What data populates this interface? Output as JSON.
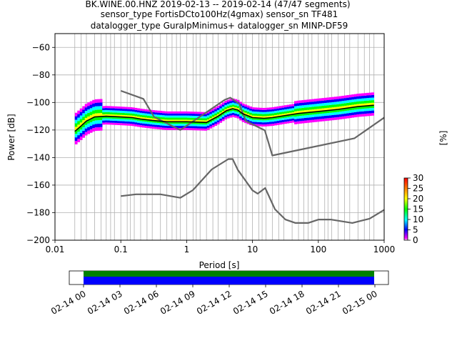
{
  "title": {
    "line1": "BK.WINE.00.HNZ   2019-02-13 -- 2019-02-14  (47/47 segments)",
    "line2": "sensor_type FortisDCto100Hz(4gmax) sensor_sn TF481",
    "line3": "datalogger_type GuralpMinimus+ datalogger_sn MINP-DF59"
  },
  "colors": {
    "model": "#666666",
    "mean": "#000000",
    "grid": "#b0b0b0",
    "timeline_green": "#008000",
    "timeline_blue": "#0000ff"
  },
  "chart_data": {
    "type": "line",
    "xlabel": "Period [s]",
    "ylabel": "Power [dB]",
    "xscale": "log",
    "xlim": [
      0.01,
      1000
    ],
    "ylim": [
      -200,
      -50
    ],
    "grid": true,
    "x_ticks": [
      {
        "value": 0.01,
        "label": "0.01"
      },
      {
        "value": 0.1,
        "label": "0.1"
      },
      {
        "value": 1,
        "label": "1"
      },
      {
        "value": 10,
        "label": "10"
      },
      {
        "value": 100,
        "label": "100"
      },
      {
        "value": 1000,
        "label": "1000"
      }
    ],
    "y_ticks": [
      {
        "value": -60,
        "label": "−60"
      },
      {
        "value": -80,
        "label": "−80"
      },
      {
        "value": -100,
        "label": "−100"
      },
      {
        "value": -120,
        "label": "−120"
      },
      {
        "value": -140,
        "label": "−140"
      },
      {
        "value": -160,
        "label": "−160"
      },
      {
        "value": -180,
        "label": "−180"
      },
      {
        "value": -200,
        "label": "−200"
      }
    ],
    "grid_periods": [
      0.02,
      0.025,
      0.03,
      0.04,
      0.05,
      0.06,
      0.07,
      0.08,
      0.1,
      0.125,
      0.14,
      0.16,
      0.2,
      0.25,
      0.3,
      0.4,
      0.5,
      0.6,
      0.7,
      0.8,
      1,
      1.25,
      1.4,
      1.6,
      2,
      2.5,
      3,
      4,
      5,
      6,
      7,
      8,
      10,
      12.5,
      14,
      16,
      20,
      25,
      30,
      40,
      50,
      60,
      70,
      80,
      100,
      125,
      140,
      160,
      200,
      250,
      300,
      400,
      500,
      600,
      700
    ],
    "series": [
      {
        "role": "high-noise-model",
        "points": [
          [
            0.1,
            -91.5
          ],
          [
            0.22,
            -97.4
          ],
          [
            0.32,
            -110.5
          ],
          [
            0.8,
            -120
          ],
          [
            3.8,
            -98
          ],
          [
            4.6,
            -96.5
          ],
          [
            6.3,
            -101
          ],
          [
            7.9,
            -113.5
          ],
          [
            15.4,
            -120.3
          ],
          [
            20,
            -138.5
          ],
          [
            354.8,
            -126
          ],
          [
            1000,
            -111
          ]
        ]
      },
      {
        "role": "low-noise-model",
        "points": [
          [
            0.1,
            -168
          ],
          [
            0.17,
            -166.7
          ],
          [
            0.4,
            -166.7
          ],
          [
            0.8,
            -169.2
          ],
          [
            1.24,
            -163.7
          ],
          [
            2.4,
            -148.6
          ],
          [
            4.3,
            -141.1
          ],
          [
            5,
            -141.1
          ],
          [
            6,
            -149
          ],
          [
            10,
            -163.8
          ],
          [
            12,
            -166.2
          ],
          [
            15.6,
            -162.1
          ],
          [
            21.9,
            -177.5
          ],
          [
            31.6,
            -185
          ],
          [
            45,
            -187.5
          ],
          [
            70,
            -187.5
          ],
          [
            101,
            -185
          ],
          [
            154,
            -185
          ],
          [
            328,
            -187.5
          ],
          [
            600,
            -184.4
          ],
          [
            1000,
            -178
          ]
        ]
      },
      {
        "role": "mean",
        "points": [
          [
            0.02,
            -121
          ],
          [
            0.025,
            -117
          ],
          [
            0.03,
            -113.5
          ],
          [
            0.04,
            -110.5
          ],
          [
            0.06,
            -110
          ],
          [
            0.1,
            -110.5
          ],
          [
            0.15,
            -111
          ],
          [
            0.2,
            -112
          ],
          [
            0.3,
            -113
          ],
          [
            0.5,
            -114
          ],
          [
            1,
            -114
          ],
          [
            2,
            -114.5
          ],
          [
            3,
            -110
          ],
          [
            4,
            -106
          ],
          [
            5,
            -104.5
          ],
          [
            6,
            -105.5
          ],
          [
            7,
            -108
          ],
          [
            10,
            -111
          ],
          [
            15,
            -111.5
          ],
          [
            20,
            -111
          ],
          [
            50,
            -108
          ],
          [
            100,
            -106.5
          ],
          [
            200,
            -105
          ],
          [
            400,
            -103
          ],
          [
            700,
            -102
          ]
        ]
      }
    ],
    "colorbar": {
      "label": "[%]",
      "min": 0,
      "max": 30,
      "ticks": [
        {
          "value": 0,
          "label": "0"
        },
        {
          "value": 5,
          "label": "5"
        },
        {
          "value": 10,
          "label": "10"
        },
        {
          "value": 15,
          "label": "15"
        },
        {
          "value": 20,
          "label": "20"
        },
        {
          "value": 25,
          "label": "25"
        },
        {
          "value": 30,
          "label": "30"
        }
      ]
    },
    "timeline": {
      "start": "2019-02-13 23:00",
      "end": "2019-02-15 03:00",
      "data_start": "2019-02-14 00:00",
      "data_end": "2019-02-15 00:00",
      "tick_labels": [
        "02-14 00",
        "02-14 03",
        "02-14 06",
        "02-14 09",
        "02-14 12",
        "02-14 15",
        "02-14 18",
        "02-14 21",
        "02-15 00"
      ]
    }
  }
}
